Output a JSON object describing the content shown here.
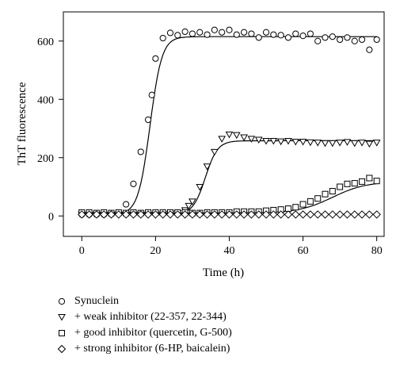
{
  "chart_data": {
    "type": "scatter",
    "xlabel": "Time (h)",
    "ylabel": "ThT fluorescence",
    "xlim": [
      -5,
      82
    ],
    "ylim": [
      -70,
      700
    ],
    "xticks": [
      0,
      20,
      40,
      60,
      80
    ],
    "yticks": [
      0,
      200,
      400,
      600
    ],
    "grid": false,
    "legend_position": "bottom-left",
    "series": [
      {
        "name": "Synuclein",
        "marker": "circle",
        "x": [
          0,
          2,
          4,
          6,
          8,
          10,
          12,
          14,
          16,
          18,
          19,
          20,
          22,
          24,
          26,
          28,
          30,
          32,
          34,
          36,
          38,
          40,
          42,
          44,
          46,
          48,
          50,
          52,
          54,
          56,
          58,
          60,
          62,
          64,
          66,
          68,
          70,
          72,
          74,
          76,
          78,
          80
        ],
        "y": [
          5,
          5,
          5,
          5,
          6,
          10,
          40,
          110,
          220,
          330,
          415,
          540,
          610,
          628,
          620,
          632,
          625,
          630,
          622,
          638,
          630,
          638,
          622,
          630,
          625,
          612,
          630,
          622,
          620,
          612,
          625,
          618,
          625,
          600,
          612,
          615,
          605,
          612,
          600,
          605,
          570,
          605
        ],
        "fit": {
          "midpoint": 18.5,
          "plateau": 615,
          "baseline": 5,
          "rate": 0.62
        }
      },
      {
        "name": "+ weak inhibitor (22-357, 22-344)",
        "marker": "triangle-down",
        "x": [
          0,
          2,
          4,
          6,
          8,
          10,
          12,
          14,
          16,
          18,
          20,
          22,
          24,
          26,
          28,
          29,
          30,
          32,
          34,
          36,
          38,
          40,
          42,
          44,
          46,
          48,
          50,
          52,
          54,
          56,
          58,
          60,
          62,
          64,
          66,
          68,
          70,
          72,
          74,
          76,
          78,
          80
        ],
        "y": [
          5,
          5,
          5,
          5,
          5,
          6,
          5,
          5,
          6,
          5,
          5,
          6,
          8,
          10,
          20,
          35,
          50,
          100,
          170,
          220,
          265,
          280,
          278,
          270,
          265,
          262,
          258,
          258,
          256,
          258,
          255,
          255,
          253,
          252,
          250,
          250,
          252,
          254,
          250,
          252,
          248,
          252
        ],
        "fit": {
          "midpoint": 33.5,
          "plateau": 258,
          "baseline": 5,
          "rate": 0.6
        }
      },
      {
        "name": "+ good inhibitor (quercetin, G-500)",
        "marker": "square",
        "x": [
          0,
          2,
          4,
          6,
          8,
          10,
          12,
          14,
          16,
          18,
          20,
          22,
          24,
          26,
          28,
          30,
          32,
          34,
          36,
          38,
          40,
          42,
          44,
          46,
          48,
          50,
          52,
          54,
          56,
          58,
          60,
          62,
          64,
          66,
          68,
          70,
          72,
          74,
          76,
          78,
          80
        ],
        "y": [
          12,
          12,
          10,
          12,
          10,
          12,
          10,
          12,
          10,
          12,
          12,
          12,
          12,
          12,
          12,
          10,
          10,
          12,
          12,
          12,
          12,
          15,
          15,
          15,
          15,
          18,
          20,
          22,
          25,
          30,
          40,
          50,
          60,
          75,
          85,
          100,
          110,
          112,
          118,
          130,
          120
        ],
        "fit": {
          "midpoint": 68,
          "plateau": 118,
          "baseline": 10,
          "rate": 0.22
        }
      },
      {
        "name": "+ strong inhibitor (6-HP, baicalein)",
        "marker": "diamond",
        "x": [
          0,
          2,
          4,
          6,
          8,
          10,
          12,
          14,
          16,
          18,
          20,
          22,
          24,
          26,
          28,
          30,
          32,
          34,
          36,
          38,
          40,
          42,
          44,
          46,
          48,
          50,
          52,
          54,
          56,
          58,
          60,
          62,
          64,
          66,
          68,
          70,
          72,
          74,
          76,
          78,
          80
        ],
        "y": [
          5,
          5,
          5,
          5,
          5,
          5,
          5,
          5,
          5,
          5,
          5,
          5,
          5,
          5,
          5,
          5,
          5,
          5,
          5,
          5,
          5,
          5,
          5,
          5,
          5,
          5,
          5,
          5,
          5,
          5,
          5,
          5,
          5,
          5,
          5,
          5,
          5,
          5,
          5,
          5,
          5
        ]
      }
    ]
  }
}
